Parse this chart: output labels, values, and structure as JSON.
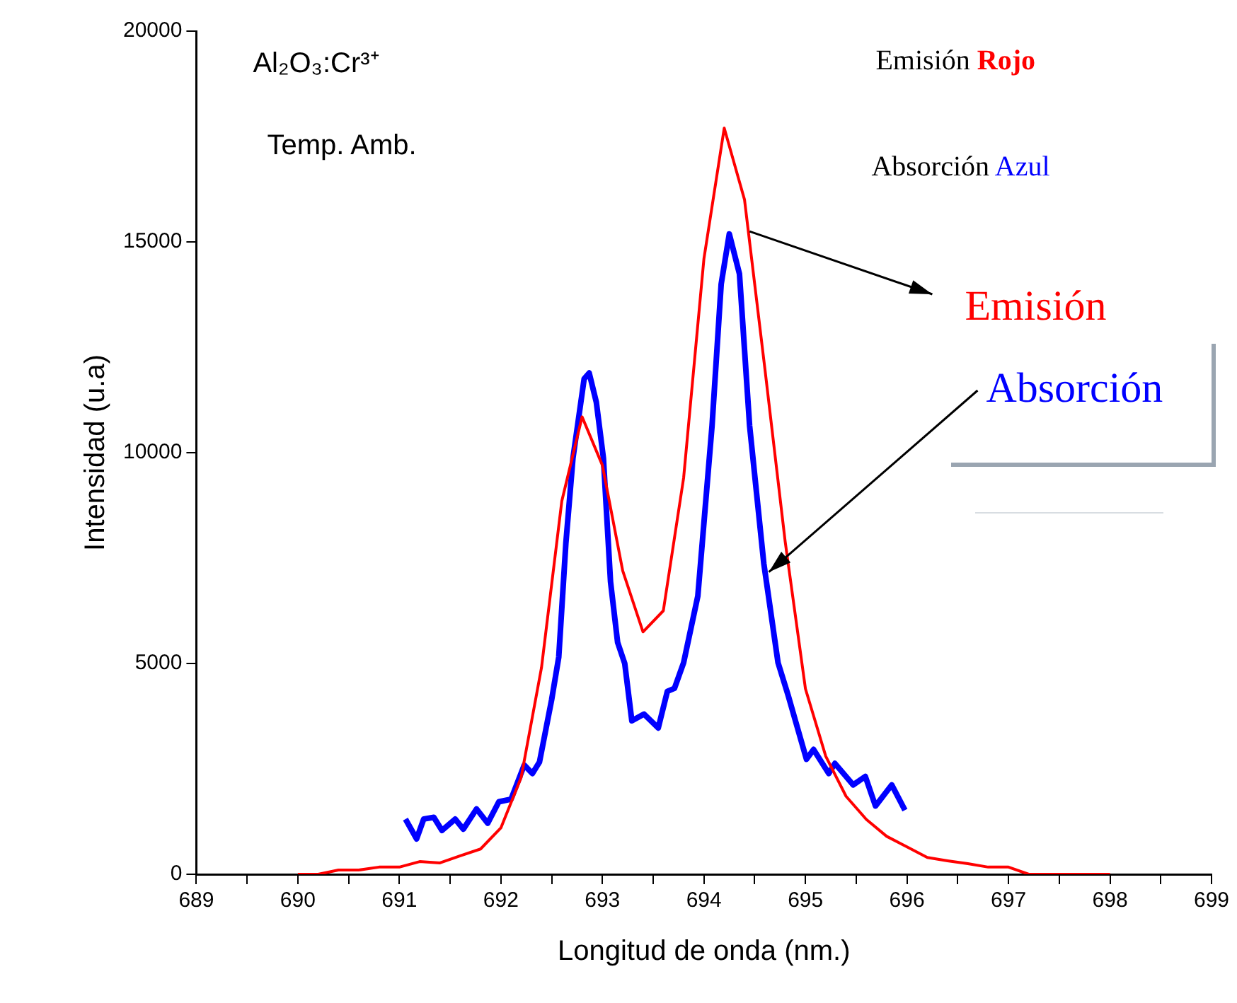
{
  "chart_data": {
    "type": "line",
    "xlabel": "Longitud de onda (nm.)",
    "ylabel": "Intensidad (u.a)",
    "xlim": [
      689,
      699
    ],
    "ylim": [
      0,
      20000
    ],
    "xticks": [
      689,
      {
        "value": 689.5,
        "label": null
      },
      690,
      {
        "value": 690.5,
        "label": null
      },
      691,
      {
        "value": 691.5,
        "label": null
      },
      692,
      {
        "value": 692.5,
        "label": null
      },
      693,
      {
        "value": 693.5,
        "label": null
      },
      694,
      {
        "value": 694.5,
        "label": null
      },
      695,
      {
        "value": 695.5,
        "label": null
      },
      696,
      {
        "value": 696.5,
        "label": null
      },
      697,
      {
        "value": 697.5,
        "label": null
      },
      698,
      {
        "value": 698.5,
        "label": null
      },
      699
    ],
    "yticks": [
      0,
      5000,
      10000,
      15000,
      20000
    ],
    "marker": "none",
    "line_style": "solid",
    "series": [
      {
        "color": "#ff0000",
        "x": [
          690.0,
          690.2,
          690.4,
          690.6,
          690.8,
          691.0,
          691.2,
          691.4,
          691.6,
          691.8,
          692.0,
          692.2,
          692.4,
          692.6,
          692.8,
          693.0,
          693.2,
          693.4,
          693.6,
          693.8,
          694.0,
          694.2,
          694.4,
          694.6,
          694.8,
          695.0,
          695.2,
          695.4,
          695.6,
          695.8,
          696.0,
          696.2,
          696.4,
          696.6,
          696.8,
          697.0,
          697.2,
          697.4,
          697.6,
          697.8,
          698.0
        ],
        "values": [
          0,
          0,
          100,
          100,
          170,
          170,
          300,
          270,
          440,
          600,
          1100,
          2300,
          4900,
          8850,
          10850,
          9700,
          7200,
          5750,
          6250,
          9400,
          14600,
          17700,
          16000,
          12000,
          7900,
          4400,
          2800,
          1850,
          1300,
          900,
          650,
          400,
          320,
          250,
          170,
          170,
          0,
          0,
          0,
          0,
          0
        ]
      },
      {
        "color": "#0000ff",
        "x": [
          691.06,
          691.17,
          691.24,
          691.34,
          691.42,
          691.55,
          691.63,
          691.76,
          691.87,
          691.98,
          692.1,
          692.23,
          692.31,
          692.38,
          692.5,
          692.57,
          692.64,
          692.71,
          692.82,
          692.87,
          692.94,
          693.01,
          693.08,
          693.15,
          693.22,
          693.29,
          693.41,
          693.55,
          693.64,
          693.71,
          693.8,
          693.94,
          694.08,
          694.17,
          694.25,
          694.35,
          694.45,
          694.59,
          694.73,
          694.83,
          695.01,
          695.08,
          695.23,
          695.29,
          695.47,
          695.59,
          695.69,
          695.85,
          695.98
        ],
        "values": [
          1310,
          840,
          1310,
          1350,
          1040,
          1310,
          1070,
          1550,
          1210,
          1720,
          1780,
          2590,
          2390,
          2660,
          4140,
          5150,
          7850,
          9870,
          11750,
          11890,
          11200,
          9870,
          6940,
          5500,
          5000,
          3640,
          3800,
          3470,
          4340,
          4410,
          5020,
          6600,
          10640,
          14000,
          15190,
          14240,
          10640,
          7370,
          5020,
          4240,
          2730,
          2960,
          2390,
          2630,
          2120,
          2320,
          1620,
          2120,
          1520
        ]
      }
    ],
    "annotations": [
      "Al₂O₃:Cr³⁺",
      "Temp. Amb.",
      "Emisión Rojo",
      "Absorción Azul",
      {
        "text": "Emisión",
        "x": 694.45,
        "y": 15250
      },
      {
        "text": "Absorción",
        "x": 694.64,
        "y": 7170
      }
    ]
  }
}
